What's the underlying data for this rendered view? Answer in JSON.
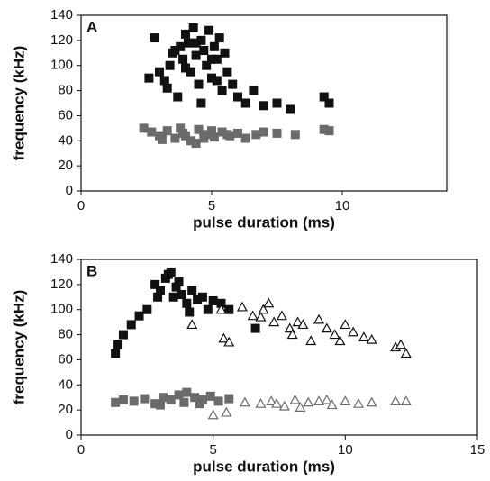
{
  "chart_data": [
    {
      "type": "scatter",
      "panel_label": "A",
      "x_label": "pulse duration (ms)",
      "y_label": "frequency (kHz)",
      "xlim": [
        0,
        14
      ],
      "xticks": [
        0,
        5,
        10
      ],
      "ylim": [
        0,
        140
      ],
      "yticks": [
        0,
        20,
        40,
        60,
        80,
        100,
        120,
        140
      ],
      "series": [
        {
          "marker": "square",
          "filled": true,
          "color": "#111111",
          "x": [
            2.8,
            3.0,
            3.2,
            3.4,
            3.5,
            3.7,
            3.8,
            3.9,
            4.0,
            4.1,
            4.2,
            4.3,
            4.4,
            4.5,
            4.6,
            4.7,
            4.8,
            4.9,
            5.0,
            5.1,
            5.2,
            5.3,
            5.4,
            5.5,
            5.6,
            5.8,
            6.0,
            6.3,
            6.6,
            7.0,
            7.5,
            8.0,
            9.3,
            9.5,
            2.6,
            3.3,
            4.0,
            4.6,
            5.2,
            3.6,
            4.4,
            5.0
          ],
          "values": [
            122,
            95,
            88,
            100,
            110,
            75,
            115,
            105,
            125,
            118,
            95,
            130,
            108,
            85,
            120,
            112,
            100,
            128,
            90,
            115,
            105,
            122,
            80,
            110,
            95,
            85,
            75,
            70,
            80,
            68,
            70,
            65,
            75,
            70,
            90,
            82,
            98,
            70,
            88,
            112,
            118,
            105
          ]
        },
        {
          "marker": "square",
          "filled": true,
          "color": "#6b6b6b",
          "x": [
            2.4,
            2.7,
            3.0,
            3.3,
            3.6,
            3.9,
            4.2,
            4.5,
            4.8,
            5.1,
            5.4,
            5.7,
            6.0,
            6.3,
            6.7,
            7.0,
            7.5,
            8.2,
            9.3,
            9.5,
            3.1,
            3.8,
            4.4,
            5.0,
            5.6,
            4.0,
            4.7
          ],
          "values": [
            50,
            47,
            44,
            48,
            42,
            46,
            40,
            49,
            45,
            43,
            47,
            44,
            46,
            42,
            45,
            47,
            46,
            45,
            49,
            48,
            41,
            50,
            38,
            48,
            45,
            44,
            42
          ]
        }
      ]
    },
    {
      "type": "scatter",
      "panel_label": "B",
      "x_label": "pulse duration (ms)",
      "y_label": "frequency (kHz)",
      "xlim": [
        0,
        15
      ],
      "xticks": [
        0,
        5,
        10,
        15
      ],
      "ylim": [
        0,
        140
      ],
      "yticks": [
        0,
        20,
        40,
        60,
        80,
        100,
        120,
        140
      ],
      "series": [
        {
          "marker": "square",
          "filled": true,
          "color": "#111111",
          "x": [
            1.3,
            1.4,
            1.6,
            1.9,
            2.2,
            2.5,
            2.8,
            3.0,
            3.2,
            3.3,
            3.4,
            3.5,
            3.6,
            3.8,
            4.0,
            4.2,
            4.4,
            4.6,
            4.8,
            5.0,
            5.3,
            5.6,
            6.6,
            2.9,
            3.7,
            4.1
          ],
          "values": [
            65,
            72,
            80,
            88,
            95,
            100,
            120,
            115,
            125,
            128,
            130,
            110,
            118,
            112,
            105,
            115,
            108,
            110,
            100,
            107,
            105,
            100,
            85,
            110,
            122,
            98
          ]
        },
        {
          "marker": "square",
          "filled": true,
          "color": "#6b6b6b",
          "x": [
            1.3,
            1.6,
            2.0,
            2.4,
            2.8,
            3.1,
            3.4,
            3.7,
            4.0,
            4.3,
            4.6,
            4.9,
            5.2,
            5.6,
            3.0,
            3.9,
            4.5
          ],
          "values": [
            26,
            28,
            27,
            29,
            25,
            30,
            28,
            32,
            34,
            30,
            28,
            31,
            27,
            29,
            24,
            26,
            25
          ]
        },
        {
          "marker": "triangle",
          "filled": false,
          "color": "#111111",
          "x": [
            4.2,
            5.4,
            5.6,
            6.1,
            6.5,
            6.9,
            7.1,
            7.3,
            7.6,
            7.9,
            8.2,
            8.4,
            8.7,
            9.0,
            9.3,
            9.6,
            10.0,
            10.3,
            10.7,
            11.0,
            11.9,
            12.1,
            12.3,
            5.3,
            6.8,
            8.0,
            9.8
          ],
          "values": [
            88,
            77,
            74,
            102,
            95,
            100,
            105,
            90,
            95,
            85,
            90,
            88,
            75,
            92,
            85,
            80,
            88,
            82,
            78,
            76,
            70,
            72,
            65,
            100,
            94,
            80,
            75
          ]
        },
        {
          "marker": "triangle",
          "filled": false,
          "color": "#6b6b6b",
          "x": [
            5.0,
            5.5,
            6.2,
            6.8,
            7.2,
            7.7,
            8.1,
            8.6,
            9.0,
            9.5,
            10.0,
            10.5,
            11.0,
            11.9,
            12.3,
            8.3,
            9.3,
            7.4
          ],
          "values": [
            16,
            18,
            26,
            25,
            27,
            23,
            28,
            26,
            27,
            24,
            27,
            25,
            26,
            27,
            27,
            22,
            28,
            25
          ]
        }
      ]
    }
  ]
}
